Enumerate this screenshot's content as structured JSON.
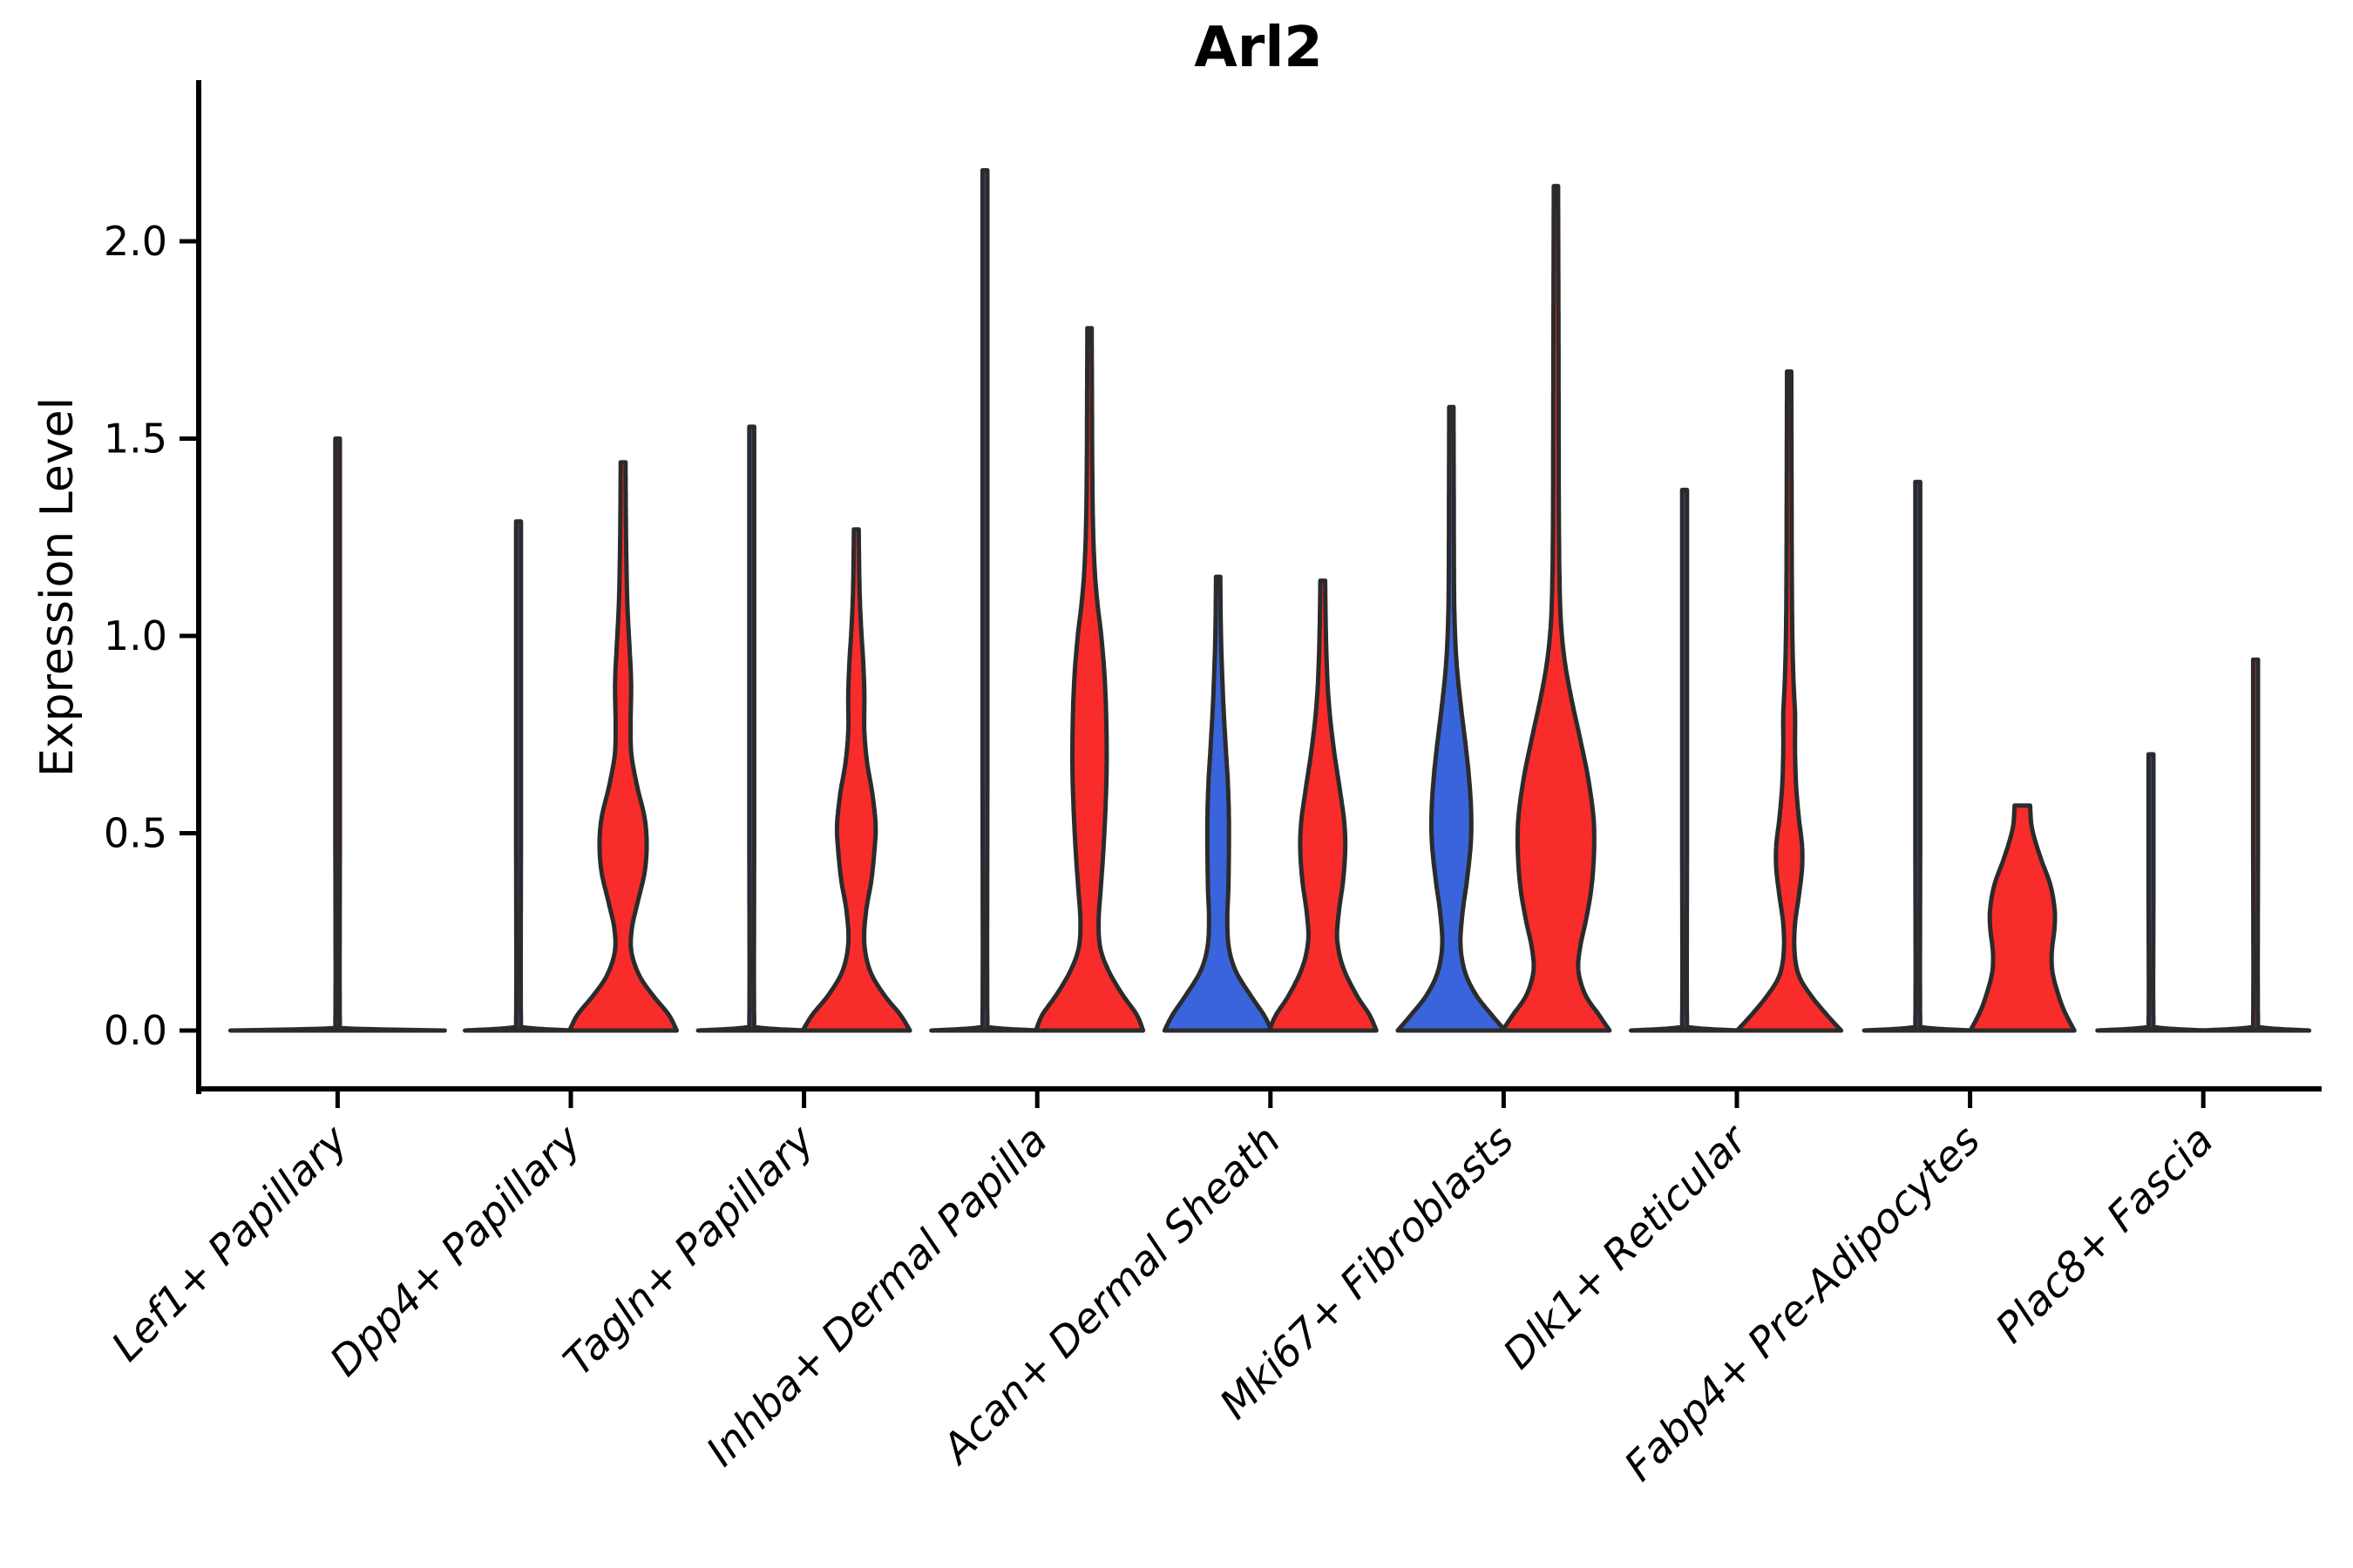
{
  "chart_data": {
    "type": "violin",
    "title": "Arl2",
    "ylabel": "Expression Level",
    "xlabel": "",
    "categories": [
      "Lef1+ Papillary",
      "Dpp4+ Papillary",
      "Tagln+ Papillary",
      "Inhba+ Dermal Papilla",
      "Acan+ Dermal Sheath",
      "Mki67+ Fibroblasts",
      "Dlk1+ Reticular",
      "Fabp4+ Pre-Adipocytes",
      "Plac8+ Fascia"
    ],
    "y_ticks": [
      "0.0",
      "0.5",
      "1.0",
      "1.5",
      "2.0"
    ],
    "y_tick_values": [
      0,
      0.5,
      1.0,
      1.5,
      2.0
    ],
    "ylim": [
      -0.15,
      2.4
    ],
    "grid": false,
    "legend": "none",
    "x_tick_rotation_deg": 45,
    "x_tick_style": "italic",
    "colors": {
      "left_group_fill": "#3A64DB",
      "right_group_fill": "#F82C2B",
      "solo_fill": "#F82C2B",
      "outline": "#2B2B2B",
      "axis": "#000000"
    },
    "split_violins_per_category": 2,
    "violins": [
      {
        "category_index": 0,
        "side": "solo",
        "max": 1.5,
        "profile": [
          [
            0,
            1.0
          ],
          [
            0.006,
            0.05
          ],
          [
            0.02,
            0.021
          ],
          [
            0.5,
            0.021
          ],
          [
            1.0,
            0.021
          ],
          [
            1.5,
            0.021
          ]
        ]
      },
      {
        "category_index": 1,
        "side": "left",
        "max": 1.29,
        "profile": [
          [
            0,
            1.0
          ],
          [
            0.008,
            0.1
          ],
          [
            0.025,
            0.045
          ],
          [
            0.5,
            0.045
          ],
          [
            0.9,
            0.045
          ],
          [
            1.29,
            0.045
          ]
        ]
      },
      {
        "category_index": 1,
        "side": "right",
        "max": 1.44,
        "profile": [
          [
            0,
            1.0
          ],
          [
            0.04,
            0.85
          ],
          [
            0.09,
            0.55
          ],
          [
            0.14,
            0.3
          ],
          [
            0.2,
            0.155
          ],
          [
            0.26,
            0.165
          ],
          [
            0.33,
            0.28
          ],
          [
            0.4,
            0.4
          ],
          [
            0.47,
            0.44
          ],
          [
            0.54,
            0.4
          ],
          [
            0.62,
            0.26
          ],
          [
            0.7,
            0.155
          ],
          [
            0.78,
            0.14
          ],
          [
            0.88,
            0.15
          ],
          [
            0.97,
            0.12
          ],
          [
            1.08,
            0.08
          ],
          [
            1.2,
            0.06
          ],
          [
            1.32,
            0.05
          ],
          [
            1.44,
            0.045
          ]
        ]
      },
      {
        "category_index": 2,
        "side": "left",
        "max": 1.53,
        "profile": [
          [
            0,
            1.0
          ],
          [
            0.008,
            0.1
          ],
          [
            0.025,
            0.045
          ],
          [
            0.5,
            0.045
          ],
          [
            1.0,
            0.045
          ],
          [
            1.53,
            0.045
          ]
        ]
      },
      {
        "category_index": 2,
        "side": "right",
        "max": 1.27,
        "profile": [
          [
            0,
            1.0
          ],
          [
            0.04,
            0.82
          ],
          [
            0.09,
            0.52
          ],
          [
            0.15,
            0.26
          ],
          [
            0.22,
            0.15
          ],
          [
            0.3,
            0.18
          ],
          [
            0.38,
            0.28
          ],
          [
            0.46,
            0.34
          ],
          [
            0.52,
            0.36
          ],
          [
            0.6,
            0.3
          ],
          [
            0.68,
            0.2
          ],
          [
            0.76,
            0.15
          ],
          [
            0.85,
            0.15
          ],
          [
            0.93,
            0.13
          ],
          [
            1.02,
            0.09
          ],
          [
            1.12,
            0.06
          ],
          [
            1.27,
            0.045
          ]
        ]
      },
      {
        "category_index": 3,
        "side": "left",
        "max": 2.18,
        "profile": [
          [
            0,
            1.0
          ],
          [
            0.008,
            0.1
          ],
          [
            0.025,
            0.045
          ],
          [
            0.7,
            0.045
          ],
          [
            1.4,
            0.045
          ],
          [
            2.18,
            0.045
          ]
        ]
      },
      {
        "category_index": 3,
        "side": "right",
        "max": 1.78,
        "profile": [
          [
            0,
            1.0
          ],
          [
            0.04,
            0.88
          ],
          [
            0.09,
            0.62
          ],
          [
            0.15,
            0.36
          ],
          [
            0.21,
            0.2
          ],
          [
            0.28,
            0.17
          ],
          [
            0.36,
            0.21
          ],
          [
            0.46,
            0.26
          ],
          [
            0.57,
            0.3
          ],
          [
            0.68,
            0.32
          ],
          [
            0.8,
            0.31
          ],
          [
            0.9,
            0.28
          ],
          [
            1.0,
            0.22
          ],
          [
            1.08,
            0.15
          ],
          [
            1.16,
            0.1
          ],
          [
            1.28,
            0.065
          ],
          [
            1.45,
            0.05
          ],
          [
            1.62,
            0.045
          ],
          [
            1.78,
            0.04
          ]
        ]
      },
      {
        "category_index": 4,
        "side": "left",
        "max": 1.15,
        "profile": [
          [
            0,
            1.0
          ],
          [
            0.04,
            0.85
          ],
          [
            0.09,
            0.6
          ],
          [
            0.15,
            0.33
          ],
          [
            0.21,
            0.2
          ],
          [
            0.28,
            0.17
          ],
          [
            0.36,
            0.19
          ],
          [
            0.45,
            0.2
          ],
          [
            0.54,
            0.2
          ],
          [
            0.63,
            0.18
          ],
          [
            0.72,
            0.14
          ],
          [
            0.82,
            0.1
          ],
          [
            0.92,
            0.07
          ],
          [
            1.02,
            0.05
          ],
          [
            1.15,
            0.04
          ]
        ]
      },
      {
        "category_index": 4,
        "side": "right",
        "max": 1.14,
        "profile": [
          [
            0,
            1.0
          ],
          [
            0.04,
            0.87
          ],
          [
            0.09,
            0.63
          ],
          [
            0.16,
            0.38
          ],
          [
            0.23,
            0.27
          ],
          [
            0.3,
            0.3
          ],
          [
            0.38,
            0.38
          ],
          [
            0.46,
            0.42
          ],
          [
            0.53,
            0.4
          ],
          [
            0.61,
            0.32
          ],
          [
            0.7,
            0.22
          ],
          [
            0.79,
            0.14
          ],
          [
            0.88,
            0.09
          ],
          [
            1.0,
            0.06
          ],
          [
            1.14,
            0.045
          ]
        ]
      },
      {
        "category_index": 5,
        "side": "left",
        "max": 1.58,
        "profile": [
          [
            0,
            1.0
          ],
          [
            0.04,
            0.75
          ],
          [
            0.09,
            0.46
          ],
          [
            0.15,
            0.25
          ],
          [
            0.22,
            0.17
          ],
          [
            0.3,
            0.21
          ],
          [
            0.38,
            0.29
          ],
          [
            0.47,
            0.36
          ],
          [
            0.55,
            0.37
          ],
          [
            0.64,
            0.33
          ],
          [
            0.73,
            0.26
          ],
          [
            0.82,
            0.18
          ],
          [
            0.91,
            0.11
          ],
          [
            1.0,
            0.07
          ],
          [
            1.12,
            0.05
          ],
          [
            1.35,
            0.045
          ],
          [
            1.58,
            0.04
          ]
        ]
      },
      {
        "category_index": 5,
        "side": "right",
        "max": 2.14,
        "profile": [
          [
            0,
            1.0
          ],
          [
            0.04,
            0.8
          ],
          [
            0.09,
            0.55
          ],
          [
            0.15,
            0.42
          ],
          [
            0.21,
            0.45
          ],
          [
            0.28,
            0.56
          ],
          [
            0.36,
            0.66
          ],
          [
            0.45,
            0.71
          ],
          [
            0.54,
            0.7
          ],
          [
            0.64,
            0.6
          ],
          [
            0.74,
            0.45
          ],
          [
            0.84,
            0.29
          ],
          [
            0.93,
            0.17
          ],
          [
            1.02,
            0.1
          ],
          [
            1.12,
            0.07
          ],
          [
            1.3,
            0.055
          ],
          [
            1.6,
            0.05
          ],
          [
            1.9,
            0.045
          ],
          [
            2.14,
            0.04
          ]
        ]
      },
      {
        "category_index": 6,
        "side": "left",
        "max": 1.37,
        "profile": [
          [
            0,
            1.0
          ],
          [
            0.008,
            0.1
          ],
          [
            0.025,
            0.045
          ],
          [
            0.5,
            0.045
          ],
          [
            1.0,
            0.045
          ],
          [
            1.37,
            0.045
          ]
        ]
      },
      {
        "category_index": 6,
        "side": "right",
        "max": 1.67,
        "profile": [
          [
            0,
            0.97
          ],
          [
            0.04,
            0.7
          ],
          [
            0.09,
            0.4
          ],
          [
            0.14,
            0.18
          ],
          [
            0.2,
            0.1
          ],
          [
            0.27,
            0.11
          ],
          [
            0.34,
            0.18
          ],
          [
            0.41,
            0.24
          ],
          [
            0.47,
            0.24
          ],
          [
            0.54,
            0.18
          ],
          [
            0.62,
            0.13
          ],
          [
            0.71,
            0.11
          ],
          [
            0.8,
            0.11
          ],
          [
            0.89,
            0.08
          ],
          [
            1.0,
            0.06
          ],
          [
            1.15,
            0.05
          ],
          [
            1.4,
            0.045
          ],
          [
            1.67,
            0.04
          ]
        ]
      },
      {
        "category_index": 7,
        "side": "left",
        "max": 1.39,
        "profile": [
          [
            0,
            1.0
          ],
          [
            0.008,
            0.1
          ],
          [
            0.025,
            0.045
          ],
          [
            0.5,
            0.045
          ],
          [
            1.0,
            0.045
          ],
          [
            1.39,
            0.045
          ]
        ]
      },
      {
        "category_index": 7,
        "side": "right",
        "max": 0.57,
        "flat_top": true,
        "profile": [
          [
            0,
            0.97
          ],
          [
            0.05,
            0.78
          ],
          [
            0.1,
            0.65
          ],
          [
            0.15,
            0.56
          ],
          [
            0.2,
            0.55
          ],
          [
            0.26,
            0.6
          ],
          [
            0.31,
            0.6
          ],
          [
            0.37,
            0.52
          ],
          [
            0.43,
            0.36
          ],
          [
            0.48,
            0.24
          ],
          [
            0.52,
            0.17
          ],
          [
            0.555,
            0.15
          ],
          [
            0.57,
            0.145
          ]
        ]
      },
      {
        "category_index": 8,
        "side": "left",
        "max": 0.7,
        "profile": [
          [
            0,
            1.0
          ],
          [
            0.008,
            0.1
          ],
          [
            0.025,
            0.045
          ],
          [
            0.35,
            0.045
          ],
          [
            0.7,
            0.045
          ]
        ]
      },
      {
        "category_index": 8,
        "side": "right",
        "max": 0.94,
        "profile": [
          [
            0,
            1.0
          ],
          [
            0.008,
            0.1
          ],
          [
            0.025,
            0.045
          ],
          [
            0.5,
            0.045
          ],
          [
            0.94,
            0.045
          ]
        ]
      }
    ]
  }
}
